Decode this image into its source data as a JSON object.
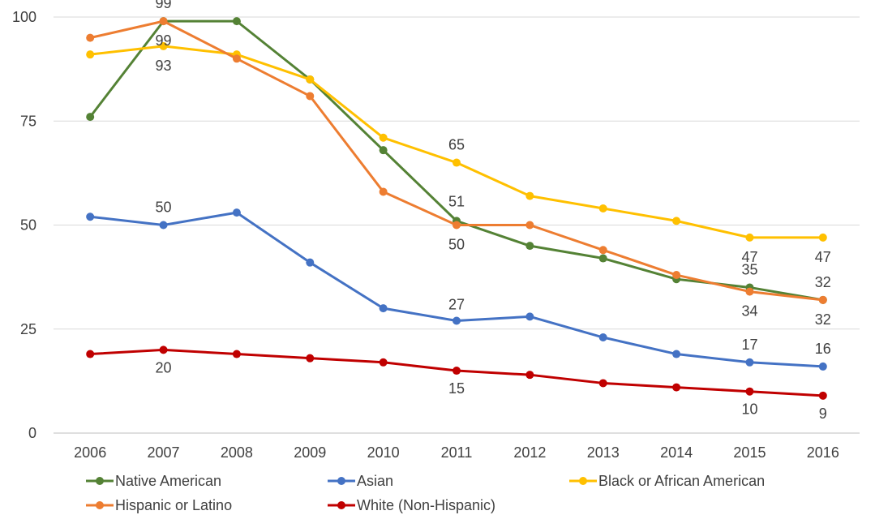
{
  "chart_data": {
    "type": "line",
    "title": "",
    "xlabel": "",
    "ylabel": "",
    "x": [
      "2006",
      "2007",
      "2008",
      "2009",
      "2010",
      "2011",
      "2012",
      "2013",
      "2014",
      "2015",
      "2016"
    ],
    "ylim": [
      0,
      100
    ],
    "yticks": [
      0,
      25,
      50,
      75,
      100
    ],
    "grid": true,
    "legend_position": "bottom",
    "series": [
      {
        "name": "Native American",
        "color": "#548235",
        "values": [
          76,
          99,
          99,
          85,
          68,
          51,
          45,
          42,
          37,
          35,
          32
        ]
      },
      {
        "name": "Asian",
        "color": "#4472C4",
        "values": [
          52,
          50,
          53,
          41,
          30,
          27,
          28,
          23,
          19,
          17,
          16
        ]
      },
      {
        "name": "Black or African American",
        "color": "#FFC000",
        "values": [
          91,
          93,
          91,
          85,
          71,
          65,
          57,
          54,
          51,
          47,
          47
        ]
      },
      {
        "name": "Hispanic or Latino",
        "color": "#ED7D31",
        "values": [
          95,
          99,
          90,
          81,
          58,
          50,
          50,
          44,
          38,
          34,
          32
        ]
      },
      {
        "name": "White (Non-Hispanic)",
        "color": "#C00000",
        "values": [
          19,
          20,
          19,
          18,
          17,
          15,
          14,
          12,
          11,
          10,
          9
        ]
      }
    ],
    "data_labels": [
      {
        "series": 0,
        "index": 1,
        "text": "99"
      },
      {
        "series": 0,
        "index": 5,
        "text": "51"
      },
      {
        "series": 0,
        "index": 9,
        "text": "35"
      },
      {
        "series": 0,
        "index": 10,
        "text": "32"
      },
      {
        "series": 1,
        "index": 1,
        "text": "50"
      },
      {
        "series": 1,
        "index": 5,
        "text": "27"
      },
      {
        "series": 1,
        "index": 9,
        "text": "17"
      },
      {
        "series": 1,
        "index": 10,
        "text": "16"
      },
      {
        "series": 2,
        "index": 1,
        "text": "93"
      },
      {
        "series": 2,
        "index": 5,
        "text": "65"
      },
      {
        "series": 2,
        "index": 9,
        "text": "47"
      },
      {
        "series": 2,
        "index": 10,
        "text": "47"
      },
      {
        "series": 3,
        "index": 1,
        "text": "99"
      },
      {
        "series": 3,
        "index": 5,
        "text": "50"
      },
      {
        "series": 3,
        "index": 9,
        "text": "34"
      },
      {
        "series": 3,
        "index": 10,
        "text": "32"
      },
      {
        "series": 4,
        "index": 1,
        "text": "20"
      },
      {
        "series": 4,
        "index": 5,
        "text": "15"
      },
      {
        "series": 4,
        "index": 9,
        "text": "10"
      },
      {
        "series": 4,
        "index": 10,
        "text": "9"
      }
    ]
  }
}
